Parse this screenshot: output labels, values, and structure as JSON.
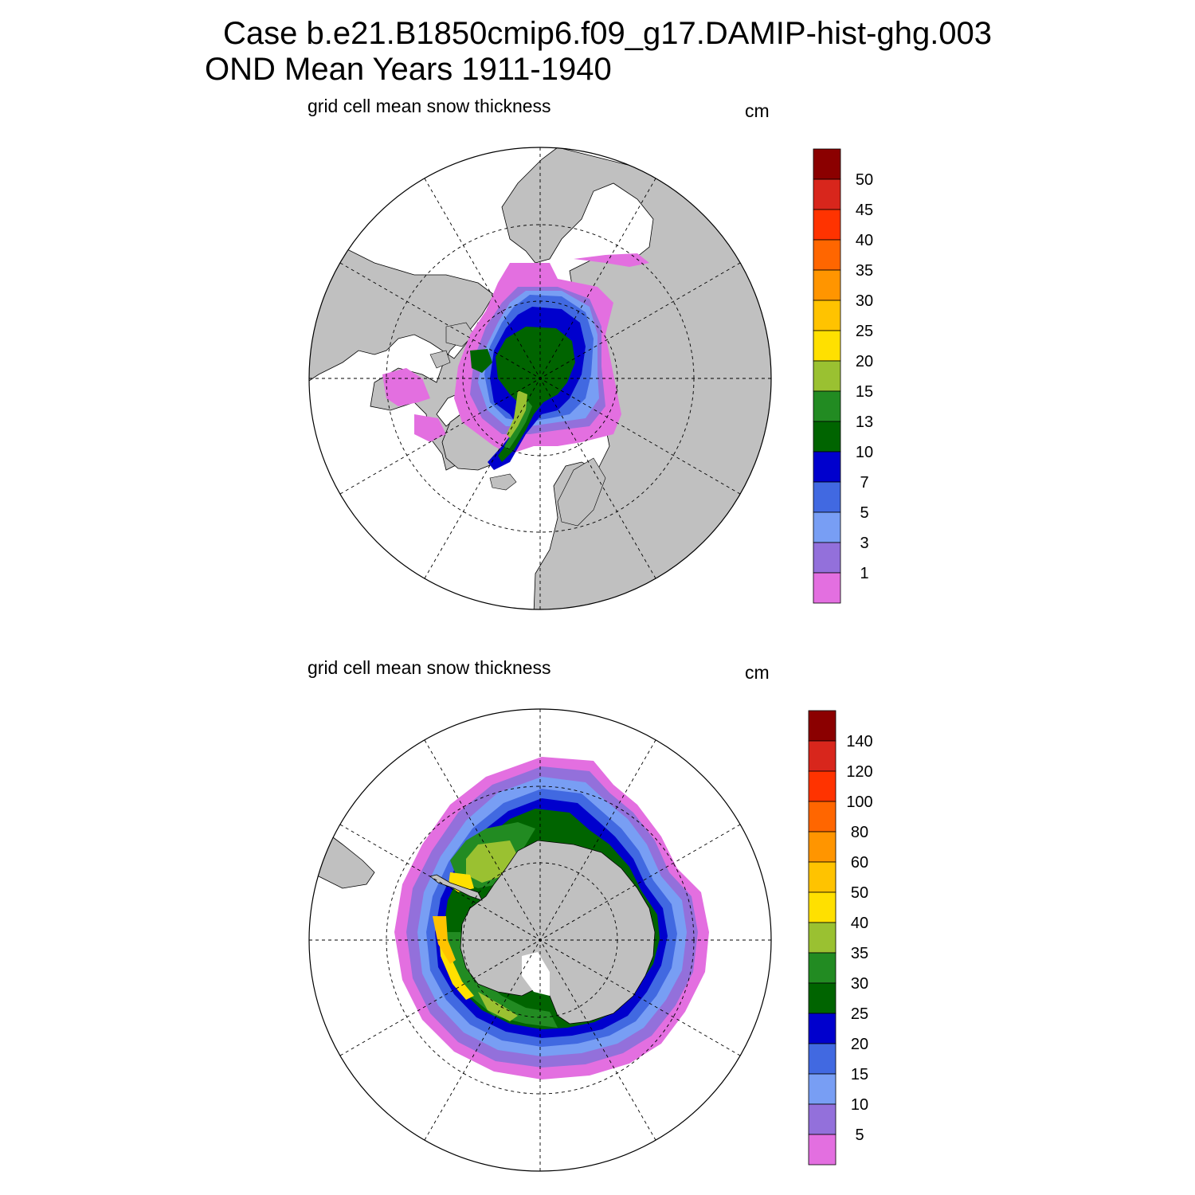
{
  "title": {
    "line1": "Case b.e21.B1850cmip6.f09_g17.DAMIP-hist-ghg.003",
    "line2": "OND Mean   Years 1911-1940"
  },
  "colors": {
    "land": "#c0c0c0",
    "palette": [
      "#e36fe0",
      "#9370db",
      "#789ef4",
      "#4169e1",
      "#0000cd",
      "#006400",
      "#228b22",
      "#9ac131",
      "#ffe000",
      "#ffc300",
      "#ff9500",
      "#ff6600",
      "#ff3300",
      "#d8261c",
      "#8b0000"
    ]
  },
  "panels": [
    {
      "id": "north",
      "subtitle": "grid cell mean snow thickness",
      "units": "cm",
      "colorbar_labels": [
        "1",
        "3",
        "5",
        "7",
        "10",
        "13",
        "15",
        "20",
        "25",
        "30",
        "35",
        "40",
        "45",
        "50"
      ]
    },
    {
      "id": "south",
      "subtitle": "grid cell mean snow thickness",
      "units": "cm",
      "colorbar_labels": [
        "5",
        "10",
        "15",
        "20",
        "25",
        "30",
        "35",
        "40",
        "50",
        "60",
        "80",
        "100",
        "120",
        "140"
      ]
    }
  ]
}
